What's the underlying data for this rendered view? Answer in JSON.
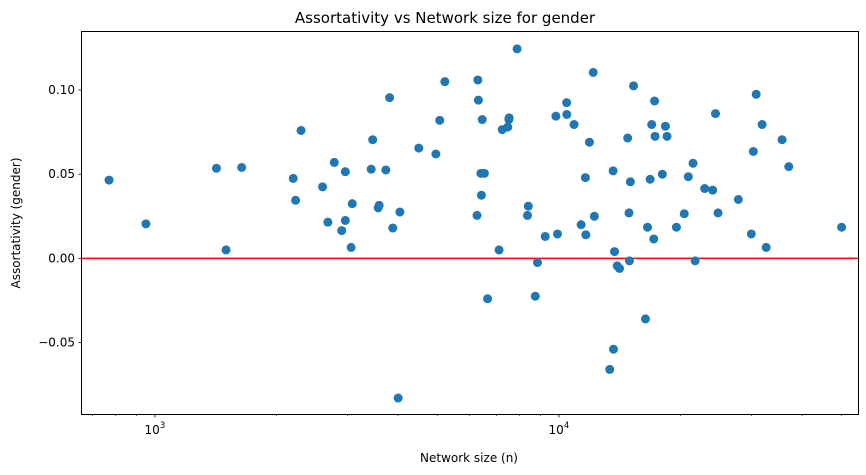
{
  "chart_data": {
    "type": "scatter",
    "title": "Assortativity vs Network size for gender",
    "xlabel": "Network size (n)",
    "ylabel": "Assortativity (gender)",
    "xscale": "log",
    "xlim": [
      660,
      55000
    ],
    "ylim": [
      -0.0925,
      0.1345
    ],
    "x_ticks": [
      {
        "value": 1000,
        "base": "10",
        "exp": "3"
      },
      {
        "value": 10000,
        "base": "10",
        "exp": "4"
      }
    ],
    "y_ticks": [
      {
        "value": -0.05,
        "label": "−0.05"
      },
      {
        "value": 0.0,
        "label": "0.00"
      },
      {
        "value": 0.05,
        "label": "0.05"
      },
      {
        "value": 0.1,
        "label": "0.10"
      }
    ],
    "grid": false,
    "reference_line": {
      "y": 0.0,
      "color": "#ff0000"
    },
    "marker_color": "#1f77b4",
    "points": [
      {
        "x": 770,
        "y": 0.0465
      },
      {
        "x": 950,
        "y": 0.0205
      },
      {
        "x": 1420,
        "y": 0.0535
      },
      {
        "x": 1500,
        "y": 0.005
      },
      {
        "x": 1640,
        "y": 0.054
      },
      {
        "x": 2200,
        "y": 0.0475
      },
      {
        "x": 2230,
        "y": 0.0345
      },
      {
        "x": 2300,
        "y": 0.076
      },
      {
        "x": 2600,
        "y": 0.0425
      },
      {
        "x": 2680,
        "y": 0.0215
      },
      {
        "x": 2780,
        "y": 0.057
      },
      {
        "x": 2900,
        "y": 0.0165
      },
      {
        "x": 2960,
        "y": 0.0515
      },
      {
        "x": 2960,
        "y": 0.0225
      },
      {
        "x": 3060,
        "y": 0.0065
      },
      {
        "x": 3080,
        "y": 0.0325
      },
      {
        "x": 3430,
        "y": 0.053
      },
      {
        "x": 3460,
        "y": 0.0705
      },
      {
        "x": 3570,
        "y": 0.03
      },
      {
        "x": 3590,
        "y": 0.0315
      },
      {
        "x": 3730,
        "y": 0.0525
      },
      {
        "x": 3810,
        "y": 0.0955
      },
      {
        "x": 3880,
        "y": 0.018
      },
      {
        "x": 4000,
        "y": -0.083
      },
      {
        "x": 4040,
        "y": 0.0275
      },
      {
        "x": 4500,
        "y": 0.0655
      },
      {
        "x": 4960,
        "y": 0.062
      },
      {
        "x": 5070,
        "y": 0.082
      },
      {
        "x": 5220,
        "y": 0.105
      },
      {
        "x": 6270,
        "y": 0.0255
      },
      {
        "x": 6300,
        "y": 0.106
      },
      {
        "x": 6320,
        "y": 0.094
      },
      {
        "x": 6410,
        "y": 0.0505
      },
      {
        "x": 6430,
        "y": 0.0375
      },
      {
        "x": 6460,
        "y": 0.0825
      },
      {
        "x": 6540,
        "y": 0.0505
      },
      {
        "x": 6660,
        "y": -0.024
      },
      {
        "x": 7110,
        "y": 0.005
      },
      {
        "x": 7240,
        "y": 0.0765
      },
      {
        "x": 7470,
        "y": 0.078
      },
      {
        "x": 7520,
        "y": 0.0825
      },
      {
        "x": 7530,
        "y": 0.0835
      },
      {
        "x": 7880,
        "y": 0.1245
      },
      {
        "x": 8360,
        "y": 0.0255
      },
      {
        "x": 8400,
        "y": 0.031
      },
      {
        "x": 8740,
        "y": -0.0225
      },
      {
        "x": 8850,
        "y": -0.0025
      },
      {
        "x": 9250,
        "y": 0.013
      },
      {
        "x": 9830,
        "y": 0.0845
      },
      {
        "x": 9920,
        "y": 0.0145
      },
      {
        "x": 10450,
        "y": 0.0925
      },
      {
        "x": 10460,
        "y": 0.0855
      },
      {
        "x": 10900,
        "y": 0.0795
      },
      {
        "x": 11350,
        "y": 0.02
      },
      {
        "x": 11630,
        "y": 0.048
      },
      {
        "x": 11660,
        "y": 0.014
      },
      {
        "x": 11900,
        "y": 0.069
      },
      {
        "x": 12160,
        "y": 0.1105
      },
      {
        "x": 12240,
        "y": 0.025
      },
      {
        "x": 13360,
        "y": -0.066
      },
      {
        "x": 13620,
        "y": 0.052
      },
      {
        "x": 13650,
        "y": -0.054
      },
      {
        "x": 13730,
        "y": 0.004
      },
      {
        "x": 13940,
        "y": -0.0045
      },
      {
        "x": 14130,
        "y": -0.006
      },
      {
        "x": 14800,
        "y": 0.0715
      },
      {
        "x": 14910,
        "y": 0.027
      },
      {
        "x": 14950,
        "y": -0.0015
      },
      {
        "x": 15030,
        "y": 0.0455
      },
      {
        "x": 15300,
        "y": 0.1025
      },
      {
        "x": 16380,
        "y": -0.036
      },
      {
        "x": 16570,
        "y": 0.0185
      },
      {
        "x": 16820,
        "y": 0.047
      },
      {
        "x": 16970,
        "y": 0.0795
      },
      {
        "x": 17170,
        "y": 0.0115
      },
      {
        "x": 17250,
        "y": 0.0935
      },
      {
        "x": 17300,
        "y": 0.0725
      },
      {
        "x": 18030,
        "y": 0.05
      },
      {
        "x": 18350,
        "y": 0.0785
      },
      {
        "x": 18520,
        "y": 0.0725
      },
      {
        "x": 19540,
        "y": 0.0185
      },
      {
        "x": 20430,
        "y": 0.0265
      },
      {
        "x": 20910,
        "y": 0.0485
      },
      {
        "x": 21480,
        "y": 0.0565
      },
      {
        "x": 21740,
        "y": -0.0015
      },
      {
        "x": 22950,
        "y": 0.0415
      },
      {
        "x": 24020,
        "y": 0.0405
      },
      {
        "x": 24410,
        "y": 0.086
      },
      {
        "x": 24770,
        "y": 0.027
      },
      {
        "x": 27810,
        "y": 0.035
      },
      {
        "x": 29940,
        "y": 0.0145
      },
      {
        "x": 30290,
        "y": 0.0635
      },
      {
        "x": 30790,
        "y": 0.0975
      },
      {
        "x": 31840,
        "y": 0.0795
      },
      {
        "x": 32590,
        "y": 0.0065
      },
      {
        "x": 35680,
        "y": 0.0705
      },
      {
        "x": 37070,
        "y": 0.0545
      },
      {
        "x": 50090,
        "y": 0.0185
      }
    ]
  }
}
